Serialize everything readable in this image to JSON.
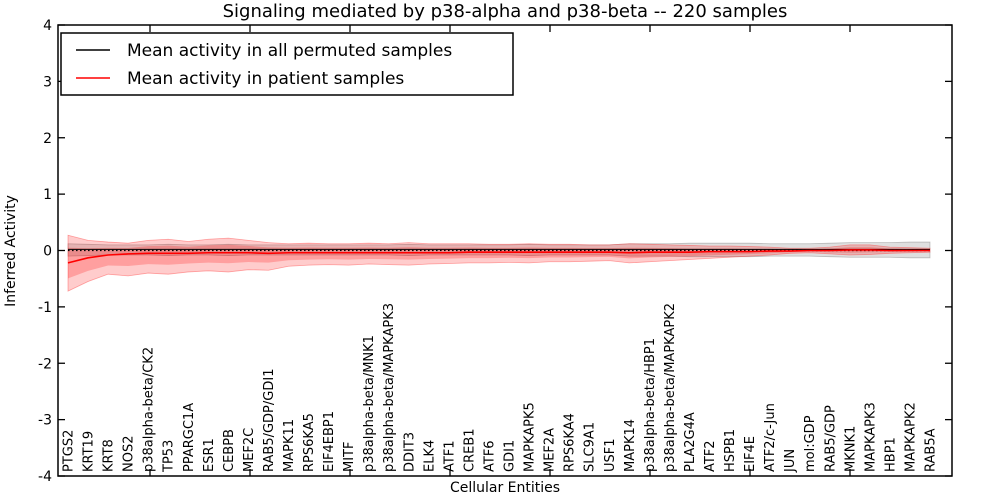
{
  "title": "Signaling mediated by p38-alpha and p38-beta -- 220 samples",
  "axes": {
    "xlabel": "Cellular Entities",
    "ylabel": "Inferred Activity",
    "ytick_labels": [
      "4",
      "3",
      "2",
      "1",
      "0",
      "-1",
      "-2",
      "-3",
      "-4"
    ],
    "ytick_values": [
      4,
      3,
      2,
      1,
      0,
      -1,
      -2,
      -3,
      -4
    ]
  },
  "legend": {
    "items": [
      {
        "label": "Mean activity in all permuted samples",
        "color": "#000000"
      },
      {
        "label": "Mean activity in patient samples",
        "color": "#ff0000"
      }
    ]
  },
  "chart_data": {
    "type": "line",
    "title": "Signaling mediated by p38-alpha and p38-beta -- 220 samples",
    "xlabel": "Cellular Entities",
    "ylabel": "Inferred Activity",
    "ylim": [
      -4,
      4
    ],
    "grid": false,
    "legend_position": "upper left",
    "zero_reference_line": 0,
    "categories": [
      "PTGS2",
      "KRT19",
      "KRT8",
      "NOS2",
      "p38alpha-beta/CK2",
      "TP53",
      "PPARGC1A",
      "ESR1",
      "CEBPB",
      "MEF2C",
      "RAB5/GDP/GDI1",
      "MAPK11",
      "RPS6KA5",
      "EIF4EBP1",
      "MITF",
      "p38alpha-beta/MNK1",
      "p38alpha-beta/MAPKAPK3",
      "DDIT3",
      "ELK4",
      "ATF1",
      "CREB1",
      "ATF6",
      "GDI1",
      "MAPKAPK5",
      "MEF2A",
      "RPS6KA4",
      "SLC9A1",
      "USF1",
      "MAPK14",
      "p38alpha-beta/HBP1",
      "p38alpha-beta/MAPKAPK2",
      "PLA2G4A",
      "ATF2",
      "HSPB1",
      "EIF4E",
      "ATF2/c-Jun",
      "JUN",
      "mol:GDP",
      "RAB5/GDP",
      "MKNK1",
      "MAPKAPK3",
      "HBP1",
      "MAPKAPK2",
      "RAB5A"
    ],
    "series": [
      {
        "name": "Mean activity in all permuted samples",
        "color": "#000000",
        "band_color": "#999999",
        "flat_value": 0.02,
        "band_lo": [
          -0.1,
          -0.09,
          -0.08,
          -0.08,
          -0.08,
          -0.09,
          -0.08,
          -0.08,
          -0.09,
          -0.08,
          -0.08,
          -0.08,
          -0.08,
          -0.08,
          -0.08,
          -0.08,
          -0.08,
          -0.09,
          -0.08,
          -0.08,
          -0.08,
          -0.08,
          -0.08,
          -0.09,
          -0.08,
          -0.08,
          -0.08,
          -0.08,
          -0.1,
          -0.1,
          -0.1,
          -0.11,
          -0.11,
          -0.11,
          -0.11,
          -0.1,
          -0.1,
          -0.1,
          -0.11,
          -0.12,
          -0.12,
          -0.12,
          -0.13,
          -0.13
        ],
        "band_hi": [
          0.12,
          0.11,
          0.1,
          0.1,
          0.1,
          0.11,
          0.1,
          0.1,
          0.11,
          0.1,
          0.1,
          0.1,
          0.1,
          0.1,
          0.1,
          0.1,
          0.1,
          0.11,
          0.1,
          0.1,
          0.1,
          0.1,
          0.1,
          0.11,
          0.1,
          0.1,
          0.1,
          0.1,
          0.12,
          0.12,
          0.12,
          0.13,
          0.13,
          0.13,
          0.13,
          0.12,
          0.12,
          0.12,
          0.13,
          0.14,
          0.14,
          0.14,
          0.15,
          0.15
        ]
      },
      {
        "name": "Mean activity in patient samples",
        "color": "#ff0000",
        "band_color": "#ff0000",
        "values": [
          -0.22,
          -0.13,
          -0.08,
          -0.06,
          -0.05,
          -0.05,
          -0.05,
          -0.04,
          -0.04,
          -0.04,
          -0.05,
          -0.04,
          -0.04,
          -0.04,
          -0.04,
          -0.04,
          -0.04,
          -0.04,
          -0.04,
          -0.04,
          -0.03,
          -0.03,
          -0.03,
          -0.03,
          -0.03,
          -0.03,
          -0.03,
          -0.03,
          -0.04,
          -0.03,
          -0.03,
          -0.03,
          -0.02,
          -0.02,
          -0.02,
          -0.01,
          -0.01,
          0.0,
          0.0,
          0.01,
          0.01,
          0.0,
          0.0,
          0.0
        ],
        "band_lo": [
          -0.72,
          -0.55,
          -0.42,
          -0.45,
          -0.4,
          -0.42,
          -0.38,
          -0.36,
          -0.38,
          -0.34,
          -0.35,
          -0.28,
          -0.26,
          -0.25,
          -0.26,
          -0.24,
          -0.25,
          -0.26,
          -0.24,
          -0.23,
          -0.22,
          -0.22,
          -0.21,
          -0.22,
          -0.2,
          -0.2,
          -0.19,
          -0.18,
          -0.22,
          -0.2,
          -0.18,
          -0.16,
          -0.14,
          -0.12,
          -0.1,
          -0.08,
          -0.05,
          -0.04,
          -0.06,
          -0.08,
          -0.07,
          -0.05,
          -0.04,
          -0.03
        ],
        "band_hi": [
          0.27,
          0.18,
          0.15,
          0.13,
          0.18,
          0.2,
          0.16,
          0.2,
          0.22,
          0.18,
          0.14,
          0.12,
          0.13,
          0.12,
          0.12,
          0.13,
          0.12,
          0.14,
          0.12,
          0.12,
          0.12,
          0.11,
          0.11,
          0.12,
          0.11,
          0.11,
          0.1,
          0.1,
          0.12,
          0.11,
          0.1,
          0.09,
          0.08,
          0.08,
          0.07,
          0.06,
          0.04,
          0.04,
          0.06,
          0.1,
          0.1,
          0.06,
          0.05,
          0.04
        ]
      }
    ]
  }
}
